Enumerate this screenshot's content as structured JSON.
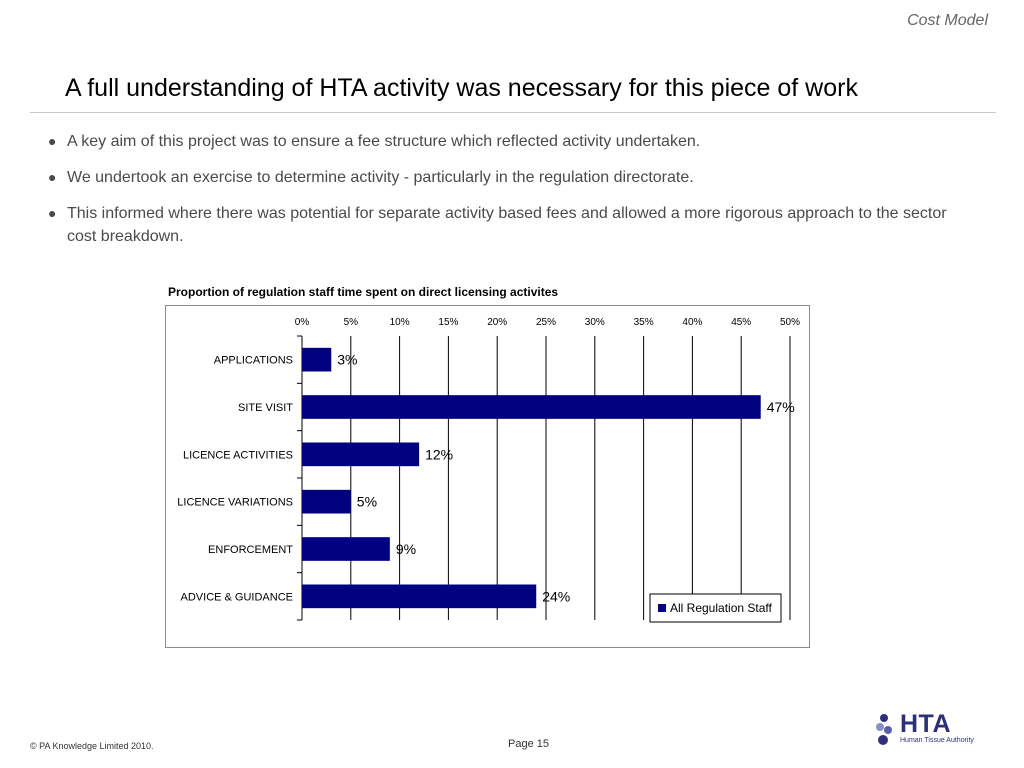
{
  "header": {
    "section": "Cost Model",
    "title": "A full understanding of HTA activity was necessary for this piece of work"
  },
  "bullets": [
    "A key aim of this project was to ensure a fee structure which reflected activity undertaken.",
    "We undertook an exercise to determine activity - particularly in the regulation directorate.",
    "This informed where there was potential for separate activity based fees and allowed a more rigorous approach to the sector cost breakdown."
  ],
  "chart_data": {
    "type": "bar",
    "orientation": "horizontal",
    "title": "Proportion of regulation staff time spent on direct licensing activites",
    "categories": [
      "APPLICATIONS",
      "SITE VISIT",
      "LICENCE ACTIVITIES",
      "LICENCE VARIATIONS",
      "ENFORCEMENT",
      "ADVICE & GUIDANCE"
    ],
    "series": [
      {
        "name": "All Regulation Staff",
        "values": [
          3,
          47,
          12,
          5,
          9,
          24
        ],
        "labels": [
          "3%",
          "47%",
          "12%",
          "5%",
          "9%",
          "24%"
        ],
        "color": "#000080"
      }
    ],
    "xlim": [
      0,
      50
    ],
    "ticks": [
      0,
      5,
      10,
      15,
      20,
      25,
      30,
      35,
      40,
      45,
      50
    ],
    "tick_labels": [
      "0%",
      "5%",
      "10%",
      "15%",
      "20%",
      "25%",
      "30%",
      "35%",
      "40%",
      "45%",
      "50%"
    ],
    "axis_position": "top",
    "grid": true,
    "legend": "bottom-right"
  },
  "footer": {
    "copyright": "© PA Knowledge Limited 2010.",
    "page": "Page 15"
  },
  "logo": {
    "word": "HTA",
    "subtitle": "Human Tissue Authority",
    "color": "#2e2f7a",
    "dot_colors": [
      "#2e2f7a",
      "#8a8fc4",
      "#5b5fa8"
    ]
  }
}
